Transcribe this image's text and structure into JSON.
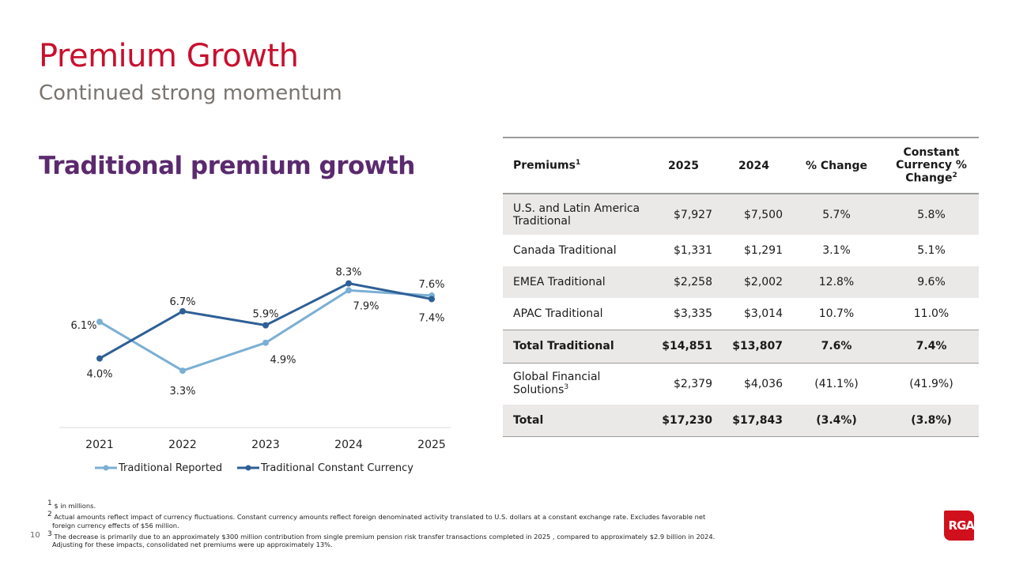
{
  "header": {
    "title": "Premium Growth",
    "subtitle": "Continued strong momentum"
  },
  "section_title": "Traditional premium growth",
  "chart_data": {
    "type": "line",
    "categories": [
      "2021",
      "2022",
      "2023",
      "2024",
      "2025"
    ],
    "series": [
      {
        "name": "Traditional Reported",
        "values": [
          6.1,
          3.3,
          4.9,
          7.9,
          7.6
        ],
        "labels": [
          "6.1%",
          "3.3%",
          "4.9%",
          "7.9%",
          "7.6%"
        ],
        "color": "#7bafd4"
      },
      {
        "name": "Traditional Constant Currency",
        "values": [
          4.0,
          6.7,
          5.9,
          8.3,
          7.4
        ],
        "labels": [
          "4.0%",
          "6.7%",
          "5.9%",
          "8.3%",
          "7.4%"
        ],
        "color": "#2e5f96"
      }
    ],
    "ylim": [
      0,
      10
    ],
    "grid": false,
    "legend": "bottom"
  },
  "table": {
    "headers": {
      "label": "Premiums",
      "label_sup": "1",
      "y2025": "2025",
      "y2024": "2024",
      "pct": "% Change",
      "cc": "Constant Currency % Change",
      "cc_sup": "2"
    },
    "rows": [
      {
        "label": "U.S. and Latin America Traditional",
        "v2025": "$7,927",
        "v2024": "$7,500",
        "pct": "5.7%",
        "cc": "5.8%"
      },
      {
        "label": "Canada Traditional",
        "v2025": "$1,331",
        "v2024": "$1,291",
        "pct": "3.1%",
        "cc": "5.1%"
      },
      {
        "label": "EMEA Traditional",
        "v2025": "$2,258",
        "v2024": "$2,002",
        "pct": "12.8%",
        "cc": "9.6%"
      },
      {
        "label": "APAC Traditional",
        "v2025": "$3,335",
        "v2024": "$3,014",
        "pct": "10.7%",
        "cc": "11.0%"
      },
      {
        "label": "Total Traditional",
        "v2025": "$14,851",
        "v2024": "$13,807",
        "pct": "7.6%",
        "cc": "7.4%"
      },
      {
        "label": "Global Financial Solutions",
        "sup": "3",
        "v2025": "$2,379",
        "v2024": "$4,036",
        "pct": "(41.1%)",
        "cc": "(41.9%)"
      },
      {
        "label": "Total",
        "v2025": "$17,230",
        "v2024": "$17,843",
        "pct": "(3.4%)",
        "cc": "(3.8%)"
      }
    ]
  },
  "footnotes": [
    {
      "mark": "1",
      "text": "$ in millions."
    },
    {
      "mark": "2",
      "text": "Actual amounts reflect impact of currency fluctuations. Constant currency amounts reflect foreign denominated activity translated to U.S. dollars at a constant exchange rate. Excludes favorable net foreign currency effects of $56 million."
    },
    {
      "mark": "3",
      "text": "The decrease is primarily due to an approximately $300 million contribution from single premium pension risk transfer transactions completed in 2025 , compared to approximately $2.9 billion in 2024. Adjusting for these impacts, consolidated net premiums were up approximately 13%."
    }
  ],
  "page_number": "10",
  "logo": {
    "text": "RGA",
    "color": "#d0101c"
  }
}
